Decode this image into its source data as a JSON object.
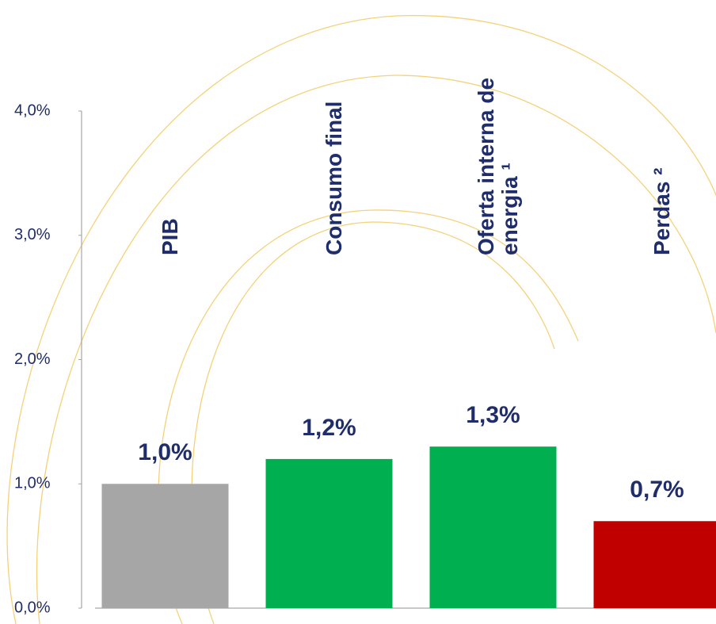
{
  "chart_data": {
    "type": "bar",
    "categories": [
      "PIB",
      "Consumo final",
      "Oferta interna de energia ¹",
      "Perdas ²"
    ],
    "values": [
      1.0,
      1.2,
      1.3,
      0.7
    ],
    "value_labels": [
      "1,0%",
      "1,2%",
      "1,3%",
      "0,7%"
    ],
    "colors": [
      "#a6a6a6",
      "#00b050",
      "#00b050",
      "#c00000"
    ],
    "ylim": [
      0,
      4
    ],
    "yticks": [
      {
        "value": 0,
        "label": "0,0%"
      },
      {
        "value": 1,
        "label": "1,0%"
      },
      {
        "value": 2,
        "label": "2,0%"
      },
      {
        "value": 3,
        "label": "3,0%"
      },
      {
        "value": 4,
        "label": "4,0%"
      }
    ]
  }
}
